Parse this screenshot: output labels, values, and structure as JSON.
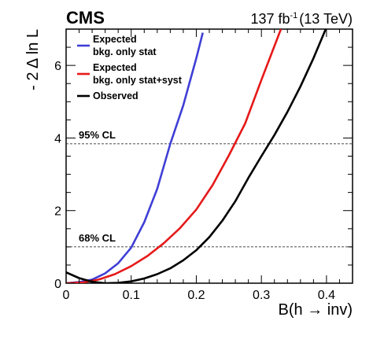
{
  "chart_data": {
    "type": "line",
    "experiment": "CMS",
    "lumi": {
      "value": "137 fb",
      "exponent": "-1",
      "energy": "(13 TeV)"
    },
    "xlabel": "B(h → inv)",
    "ylabel": "- 2 Δ ln L",
    "xlim": [
      0,
      0.44
    ],
    "ylim": [
      0,
      7
    ],
    "xticks": [
      0,
      0.1,
      0.2,
      0.3,
      0.4
    ],
    "xtick_labels": [
      "0",
      "0.1",
      "0.2",
      "0.3",
      "0.4"
    ],
    "yticks": [
      0,
      2,
      4,
      6
    ],
    "ytick_labels": [
      "0",
      "2",
      "4",
      "6"
    ],
    "grid": false,
    "legend_position": "top-left",
    "reference_lines": [
      {
        "label": "95% CL",
        "y": 3.84
      },
      {
        "label": "68% CL",
        "y": 1.0
      }
    ],
    "series": [
      {
        "name": "Expected bkg. only stat",
        "legend_lines": [
          "Expected",
          "bkg. only stat"
        ],
        "color": "#3f3fd6",
        "x": [
          0.0,
          0.02,
          0.04,
          0.06,
          0.08,
          0.1,
          0.12,
          0.14,
          0.16,
          0.18,
          0.2,
          0.21
        ],
        "y": [
          0.0,
          0.03,
          0.1,
          0.27,
          0.55,
          0.98,
          1.68,
          2.6,
          3.84,
          4.9,
          6.2,
          6.9
        ]
      },
      {
        "name": "Expected bkg. only stat+syst",
        "legend_lines": [
          "Expected",
          "bkg. only stat+syst"
        ],
        "color": "#e61919",
        "x": [
          0.0,
          0.025,
          0.05,
          0.075,
          0.1,
          0.125,
          0.15,
          0.175,
          0.2,
          0.225,
          0.25,
          0.275,
          0.3,
          0.33
        ],
        "y": [
          0.0,
          0.02,
          0.1,
          0.25,
          0.47,
          0.75,
          1.1,
          1.52,
          2.03,
          2.7,
          3.52,
          4.4,
          5.6,
          7.0
        ]
      },
      {
        "name": "Observed",
        "legend_lines": [
          "Observed"
        ],
        "color": "#000000",
        "x": [
          0.0,
          0.02,
          0.04,
          0.06,
          0.08,
          0.1,
          0.12,
          0.14,
          0.16,
          0.18,
          0.2,
          0.22,
          0.24,
          0.26,
          0.28,
          0.3,
          0.32,
          0.34,
          0.36,
          0.38,
          0.4
        ],
        "y": [
          0.3,
          0.14,
          0.04,
          0.0,
          0.01,
          0.05,
          0.13,
          0.25,
          0.41,
          0.63,
          0.91,
          1.27,
          1.72,
          2.26,
          2.9,
          3.5,
          4.08,
          4.72,
          5.42,
          6.2,
          7.05
        ]
      }
    ]
  }
}
